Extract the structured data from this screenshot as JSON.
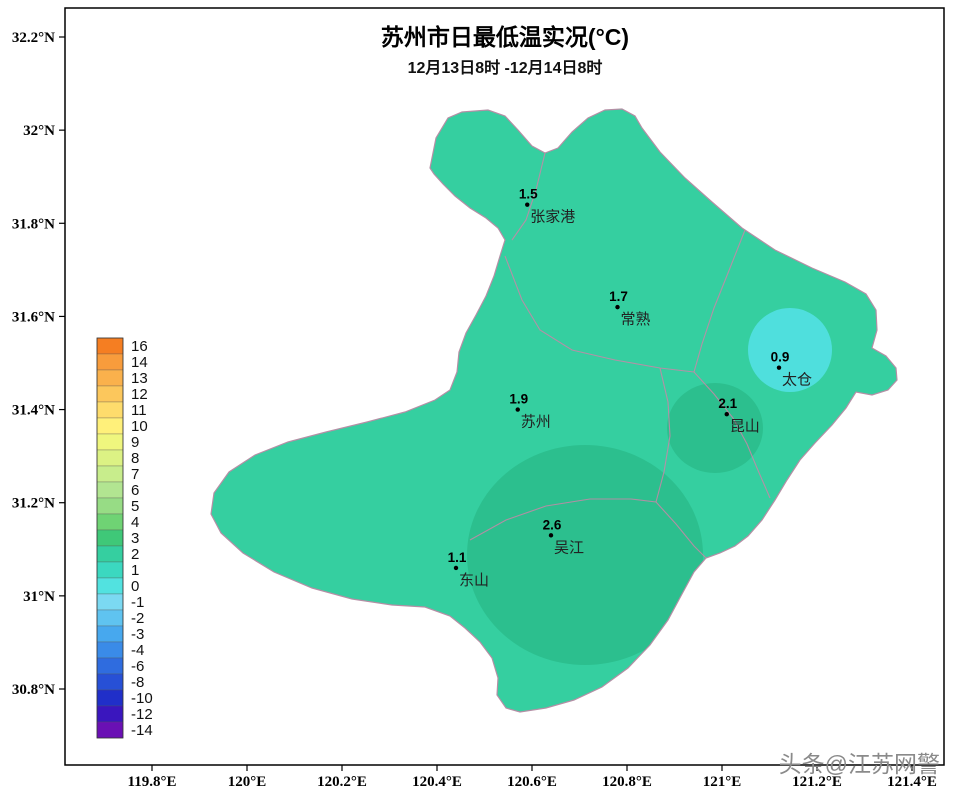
{
  "title": "苏州市日最低温实况(°C)",
  "subtitle": "12月13日8时 -12月14日8时",
  "watermark": "头条@江苏网警",
  "map": {
    "fill_main": "#35CFA0",
    "fill_band_2_3": "#2CBF8E",
    "fill_band_0_1": "#4FDFDD"
  },
  "legend": {
    "entries": [
      {
        "label": "16",
        "color": "#F57E22"
      },
      {
        "label": "14",
        "color": "#F89C3C"
      },
      {
        "label": "13",
        "color": "#FAB14C"
      },
      {
        "label": "12",
        "color": "#FCC75C"
      },
      {
        "label": "11",
        "color": "#FEDC6C"
      },
      {
        "label": "10",
        "color": "#FFF07A"
      },
      {
        "label": "9",
        "color": "#EFF67E"
      },
      {
        "label": "8",
        "color": "#DCF284"
      },
      {
        "label": "7",
        "color": "#C8ED8C"
      },
      {
        "label": "6",
        "color": "#B2E591"
      },
      {
        "label": "5",
        "color": "#97DC85"
      },
      {
        "label": "4",
        "color": "#6FD374"
      },
      {
        "label": "3",
        "color": "#3FC878"
      },
      {
        "label": "2",
        "color": "#35CFA0"
      },
      {
        "label": "1",
        "color": "#3BD8C0"
      },
      {
        "label": "0",
        "color": "#52E2E0"
      },
      {
        "label": "-1",
        "color": "#7BD9F2"
      },
      {
        "label": "-2",
        "color": "#5FC3F0"
      },
      {
        "label": "-3",
        "color": "#47A8EE"
      },
      {
        "label": "-4",
        "color": "#3A8BE8"
      },
      {
        "label": "-6",
        "color": "#2F6CDF"
      },
      {
        "label": "-8",
        "color": "#2750D6"
      },
      {
        "label": "-10",
        "color": "#202FC9"
      },
      {
        "label": "-12",
        "color": "#3A16BE"
      },
      {
        "label": "-14",
        "color": "#6A10B4"
      }
    ]
  },
  "chart_data": {
    "type": "heatmap",
    "title": "苏州市日最低温实况(°C)",
    "subtitle": "12月13日8时 -12月14日8时",
    "unit": "°C",
    "x_ticks": [
      "119.8°E",
      "120°E",
      "120.2°E",
      "120.4°E",
      "120.6°E",
      "120.8°E",
      "121°E",
      "121.2°E",
      "121.4°E"
    ],
    "y_ticks": [
      "32.2°N",
      "32°N",
      "31.8°N",
      "31.6°N",
      "31.4°N",
      "31.2°N",
      "31°N",
      "30.8°N"
    ],
    "legend_levels": [
      16,
      14,
      13,
      12,
      11,
      10,
      9,
      8,
      7,
      6,
      5,
      4,
      3,
      2,
      1,
      0,
      -1,
      -2,
      -3,
      -4,
      -6,
      -8,
      -10,
      -12,
      -14
    ],
    "points": [
      {
        "name": "张家港",
        "lon": 120.59,
        "lat": 31.84,
        "value": 1.5
      },
      {
        "name": "常熟",
        "lon": 120.78,
        "lat": 31.62,
        "value": 1.7
      },
      {
        "name": "太仓",
        "lon": 121.12,
        "lat": 31.49,
        "value": 0.9
      },
      {
        "name": "苏州",
        "lon": 120.57,
        "lat": 31.4,
        "value": 1.9
      },
      {
        "name": "昆山",
        "lon": 121.01,
        "lat": 31.39,
        "value": 2.1
      },
      {
        "name": "吴江",
        "lon": 120.64,
        "lat": 31.13,
        "value": 2.6
      },
      {
        "name": "东山",
        "lon": 120.44,
        "lat": 31.06,
        "value": 1.1
      }
    ]
  }
}
